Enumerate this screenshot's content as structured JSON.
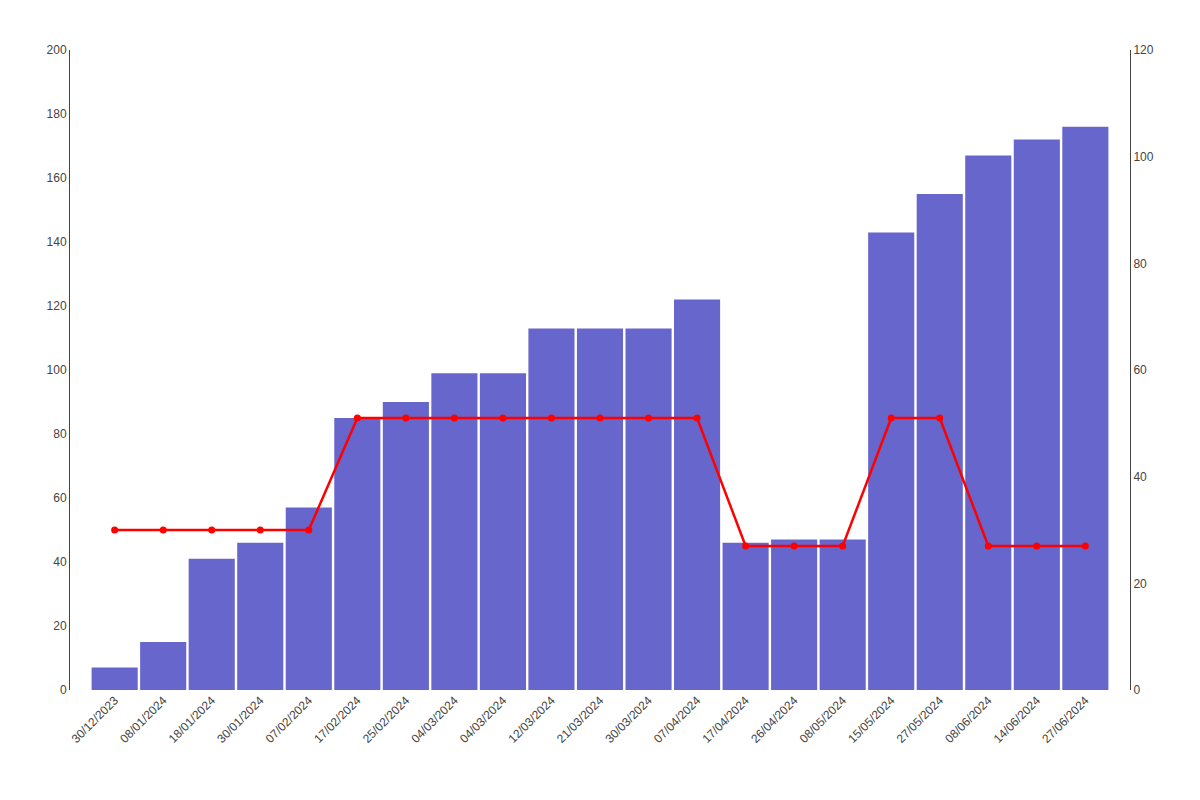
{
  "chart_data": {
    "type": "bar",
    "categories": [
      "30/12/2023",
      "08/01/2024",
      "18/01/2024",
      "30/01/2024",
      "07/02/2024",
      "17/02/2024",
      "25/02/2024",
      "04/03/2024",
      "04/03/2024",
      "12/03/2024",
      "21/03/2024",
      "30/03/2024",
      "07/04/2024",
      "17/04/2024",
      "26/04/2024",
      "08/05/2024",
      "15/05/2024",
      "27/05/2024",
      "08/06/2024",
      "14/06/2024",
      "27/06/2024"
    ],
    "series": [
      {
        "type": "bar",
        "color": "#6666cc",
        "values": [
          7,
          15,
          41,
          46,
          57,
          85,
          90,
          99,
          99,
          113,
          113,
          113,
          122,
          46,
          47,
          47,
          143,
          155,
          167,
          172,
          176
        ]
      },
      {
        "type": "line",
        "axis": "y2",
        "color": "#ff0000",
        "marker": "circle",
        "values": [
          30,
          30,
          30,
          30,
          30,
          51,
          51,
          51,
          51,
          51,
          51,
          51,
          51,
          27,
          27,
          27,
          51,
          51,
          27,
          27,
          27
        ]
      }
    ],
    "ylim": [
      0,
      200
    ],
    "yticks": [
      0,
      20,
      40,
      60,
      80,
      100,
      120,
      140,
      160,
      180,
      200
    ],
    "y2lim": [
      0,
      120
    ],
    "y2ticks": [
      0,
      20,
      40,
      60,
      80,
      100,
      120
    ],
    "grid": false
  }
}
